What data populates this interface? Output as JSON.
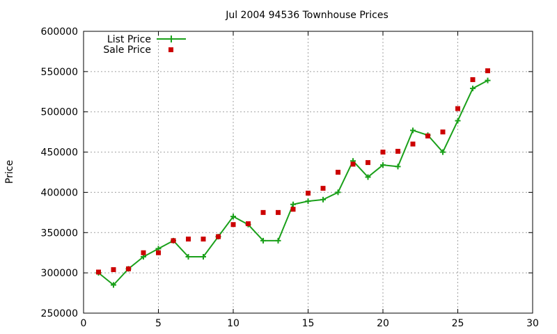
{
  "chart_data": {
    "type": "line",
    "title": "Jul 2004 94536 Townhouse Prices",
    "xlabel": "",
    "ylabel": "Price",
    "xlim": [
      0,
      30
    ],
    "ylim": [
      250000,
      600000
    ],
    "xticks": [
      0,
      5,
      10,
      15,
      20,
      25,
      30
    ],
    "yticks": [
      250000,
      300000,
      350000,
      400000,
      450000,
      500000,
      550000,
      600000
    ],
    "grid": true,
    "legend": "top-left",
    "series": [
      {
        "name": "List Price",
        "style": "line+cross",
        "color": "#1aa01a",
        "x": [
          1,
          2,
          3,
          4,
          5,
          6,
          7,
          8,
          9,
          10,
          11,
          12,
          13,
          14,
          15,
          16,
          17,
          18,
          19,
          20,
          21,
          22,
          23,
          24,
          25,
          26,
          27
        ],
        "y": [
          300000,
          285000,
          305000,
          320000,
          330000,
          340000,
          320000,
          320000,
          345000,
          370000,
          360000,
          340000,
          340000,
          385000,
          389000,
          391000,
          400000,
          439000,
          419000,
          434000,
          432000,
          477000,
          471000,
          450000,
          489000,
          529000,
          539000
        ]
      },
      {
        "name": "Sale Price",
        "style": "square",
        "color": "#cc0000",
        "x": [
          1,
          2,
          3,
          4,
          5,
          6,
          7,
          8,
          9,
          10,
          11,
          12,
          13,
          14,
          15,
          16,
          17,
          18,
          19,
          20,
          21,
          22,
          23,
          24,
          25,
          26,
          27
        ],
        "y": [
          301000,
          304000,
          305000,
          325000,
          325000,
          340000,
          342000,
          342000,
          345000,
          360000,
          361000,
          375000,
          375000,
          379000,
          399000,
          405000,
          425000,
          435000,
          437000,
          450000,
          451000,
          460000,
          470000,
          475000,
          504000,
          540000,
          551000
        ]
      }
    ]
  }
}
